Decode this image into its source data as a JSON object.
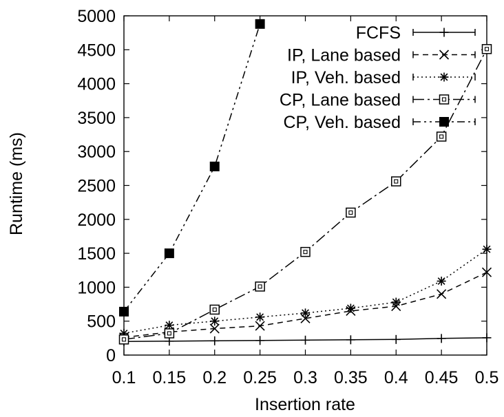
{
  "chart_data": {
    "type": "line",
    "title": "",
    "xlabel": "Insertion rate",
    "ylabel": "Runtime (ms)",
    "xlim": [
      0.1,
      0.5
    ],
    "ylim": [
      0,
      5000
    ],
    "x_ticks": [
      "0.1",
      "0.15",
      "0.2",
      "0.25",
      "0.3",
      "0.35",
      "0.4",
      "0.45",
      "0.5"
    ],
    "y_ticks": [
      "0",
      "500",
      "1000",
      "1500",
      "2000",
      "2500",
      "3000",
      "3500",
      "4000",
      "4500",
      "5000"
    ],
    "x": [
      0.1,
      0.15,
      0.2,
      0.25,
      0.3,
      0.35,
      0.4,
      0.45,
      0.5
    ],
    "grid": false,
    "legend_position": "top-right",
    "series": [
      {
        "name": "FCFS",
        "marker": "plus",
        "dash": "solid",
        "x": [
          0.1,
          0.15,
          0.2,
          0.25,
          0.3,
          0.35,
          0.4,
          0.45,
          0.5
        ],
        "values": [
          200,
          205,
          210,
          215,
          220,
          225,
          230,
          245,
          255
        ]
      },
      {
        "name": "IP, Lane based",
        "marker": "cross",
        "dash": "dashed",
        "x": [
          0.1,
          0.15,
          0.2,
          0.25,
          0.3,
          0.35,
          0.4,
          0.45,
          0.5
        ],
        "values": [
          260,
          340,
          390,
          430,
          540,
          650,
          720,
          900,
          1220
        ]
      },
      {
        "name": "IP, Veh. based",
        "marker": "star",
        "dash": "dotted",
        "x": [
          0.1,
          0.15,
          0.2,
          0.25,
          0.3,
          0.35,
          0.4,
          0.45,
          0.5
        ],
        "values": [
          320,
          440,
          500,
          560,
          620,
          690,
          780,
          1090,
          1560
        ]
      },
      {
        "name": "CP, Lane based",
        "marker": "open-square",
        "dash": "long-dash-dot",
        "x": [
          0.1,
          0.15,
          0.2,
          0.25,
          0.3,
          0.35,
          0.4,
          0.45,
          0.5
        ],
        "values": [
          230,
          320,
          670,
          1010,
          1520,
          2100,
          2560,
          3220,
          4510
        ]
      },
      {
        "name": "CP, Veh. based",
        "marker": "filled-square",
        "dash": "dash-dot-dot",
        "x": [
          0.1,
          0.15,
          0.2,
          0.25
        ],
        "values": [
          640,
          1500,
          2780,
          4880
        ]
      }
    ]
  }
}
